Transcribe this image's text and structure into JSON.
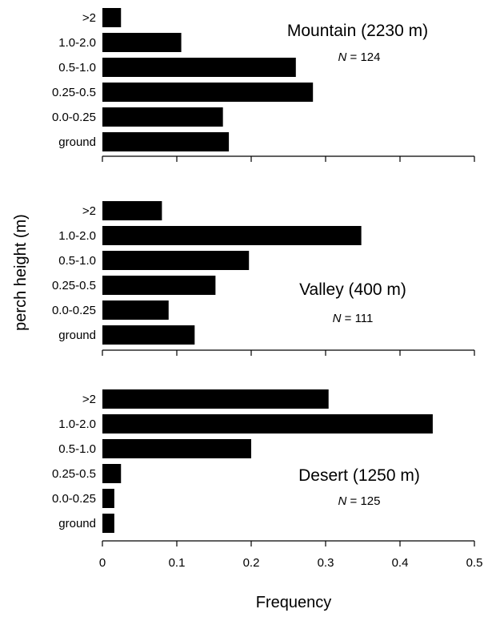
{
  "chart_data": {
    "type": "bar",
    "orientation": "horizontal",
    "xlabel": "Frequency",
    "ylabel": "perch height (m)",
    "xlim": [
      0,
      0.5
    ],
    "xticks": [
      "0",
      "0.1",
      "0.2",
      "0.3",
      "0.4",
      "0.5"
    ],
    "categories": [
      ">2",
      "1.0-2.0",
      "0.5-1.0",
      "0.25-0.5",
      "0.0-0.25",
      "ground"
    ],
    "panels": [
      {
        "title": "Mountain (2230 m)",
        "n_prefix": "N",
        "n_text": " = 124",
        "values": [
          0.025,
          0.106,
          0.26,
          0.283,
          0.162,
          0.17
        ]
      },
      {
        "title": "Valley (400 m)",
        "n_prefix": "N",
        "n_text": " = 111",
        "values": [
          0.08,
          0.348,
          0.197,
          0.152,
          0.089,
          0.124
        ]
      },
      {
        "title": "Desert (1250 m)",
        "n_prefix": "N",
        "n_text": " = 125",
        "values": [
          0.304,
          0.444,
          0.2,
          0.025,
          0.016,
          0.016
        ]
      }
    ]
  }
}
